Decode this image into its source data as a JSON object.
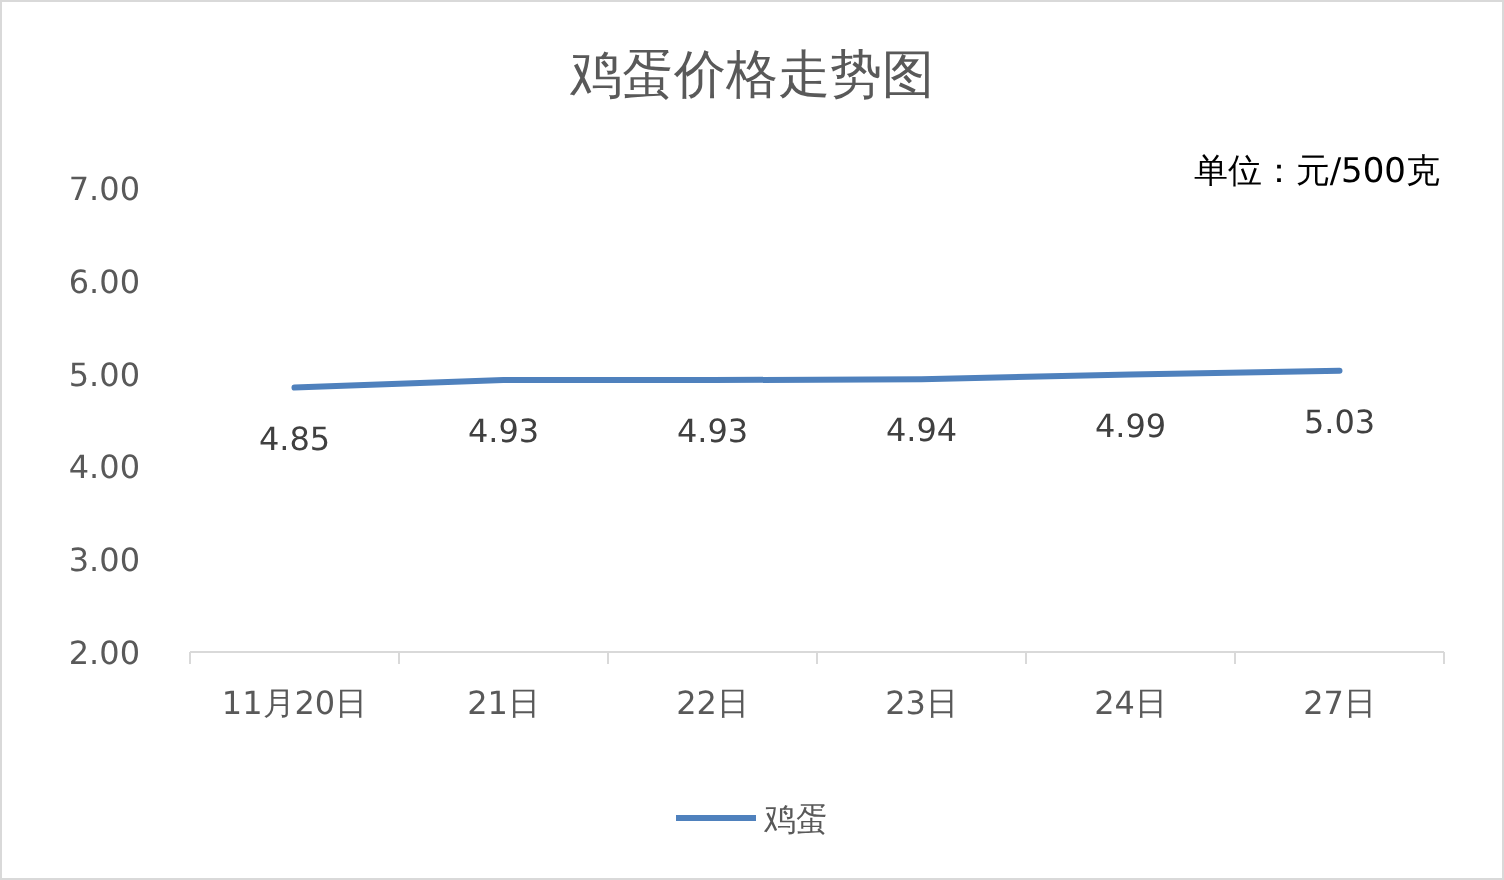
{
  "chart_data": {
    "type": "line",
    "title": "鸡蛋价格走势图",
    "annotations": [
      "单位：元/500克"
    ],
    "categories": [
      "11月20日",
      "21日",
      "22日",
      "23日",
      "24日",
      "27日"
    ],
    "series": [
      {
        "name": "鸡蛋",
        "color": "#4f81bd",
        "values": [
          4.85,
          4.93,
          4.93,
          4.94,
          4.99,
          5.03
        ]
      }
    ],
    "ylim": [
      2,
      7
    ],
    "yticks": [
      {
        "value": 2,
        "label": "2.00"
      },
      {
        "value": 3,
        "label": "3.00"
      },
      {
        "value": 4,
        "label": "4.00"
      },
      {
        "value": 5,
        "label": "5.00"
      },
      {
        "value": 6,
        "label": "6.00"
      },
      {
        "value": 7,
        "label": "7.00"
      }
    ],
    "data_labels": true,
    "legend": "bottom",
    "marker": "none",
    "line_style": "solid"
  }
}
